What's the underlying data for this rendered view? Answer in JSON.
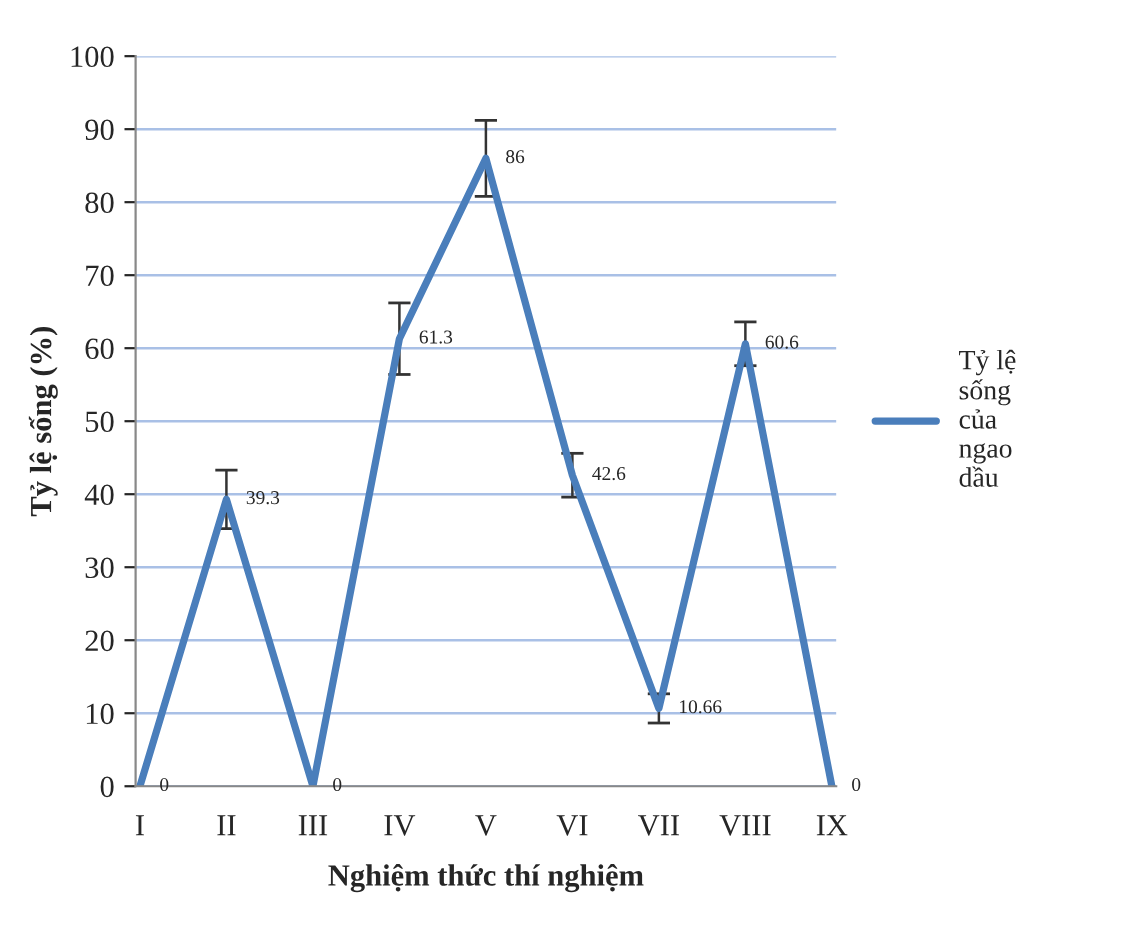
{
  "chart_data": {
    "type": "line",
    "xlabel": "Nghiệm thức thí nghiệm",
    "ylabel": "Tỷ lệ sống (%)",
    "categories": [
      "I",
      "II",
      "III",
      "IV",
      "V",
      "VI",
      "VII",
      "VIII",
      "IX"
    ],
    "series": [
      {
        "name": "Tỷ lệ sống của ngao dầu",
        "color": "#4a7ebb",
        "values": [
          0,
          39.3,
          0,
          61.3,
          86,
          42.6,
          10.66,
          60.6,
          0
        ],
        "errors": [
          null,
          4,
          null,
          4.9,
          5.2,
          3,
          2,
          3,
          null
        ]
      }
    ],
    "ylim": [
      0,
      100
    ],
    "yticks": [
      0,
      10,
      20,
      30,
      40,
      50,
      60,
      70,
      80,
      90,
      100
    ],
    "grid": "y",
    "legend": "right",
    "data_labels": true,
    "marker": "none",
    "line_style": "solid"
  }
}
